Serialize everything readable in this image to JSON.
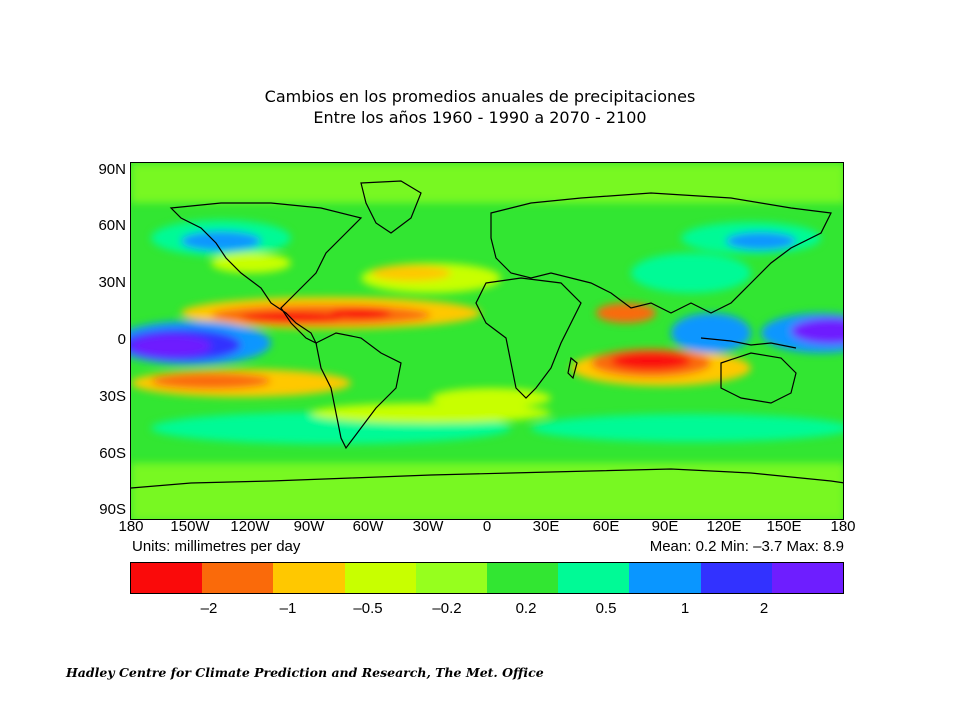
{
  "title": {
    "line1": "Cambios en los promedios anuales de precipitaciones",
    "line2": "Entre los años 1960 - 1990 a 2070 - 2100"
  },
  "axes": {
    "lat_labels": [
      "90N",
      "60N",
      "30N",
      "0",
      "30S",
      "60S",
      "90S"
    ],
    "lon_labels": [
      "180",
      "150W",
      "120W",
      "90W",
      "60W",
      "30W",
      "0",
      "30E",
      "60E",
      "90E",
      "120E",
      "150E",
      "180"
    ]
  },
  "units_text": "Units: millimetres per day",
  "stats_text": "Mean:  0.2 Min: –3.7 Max:  8.9",
  "colorbar": {
    "colors": [
      "#fa0a0a",
      "#fa6a0a",
      "#ffc800",
      "#c8ff00",
      "#96ff1e",
      "#32e632",
      "#00fa96",
      "#0a96ff",
      "#3232ff",
      "#6e1eff"
    ],
    "labels": [
      "–2",
      "–1",
      "–0.5",
      "–0.2",
      "0.2",
      "0.5",
      "1",
      "2"
    ]
  },
  "credit": "Hadley Centre for Climate Prediction and Research, The Met. Office"
}
